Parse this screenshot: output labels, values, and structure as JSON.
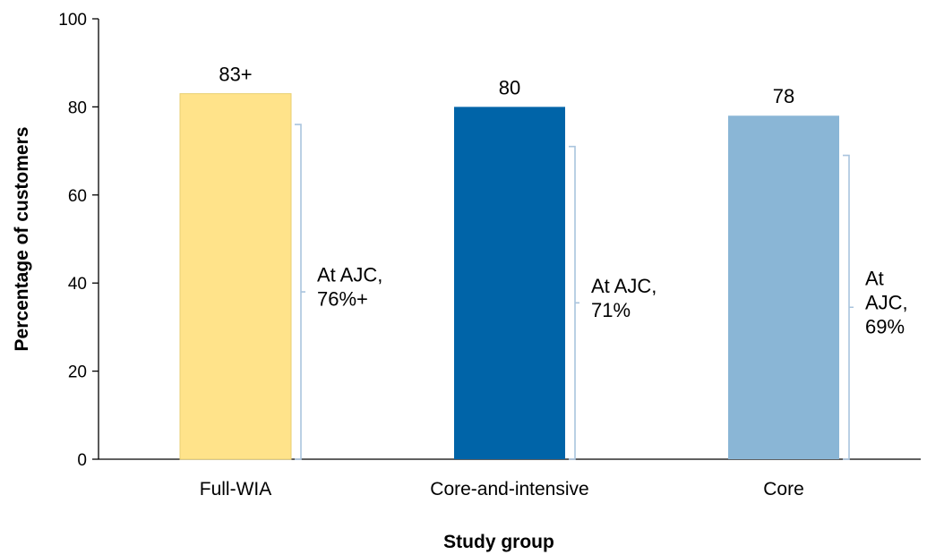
{
  "chart_data": {
    "type": "bar",
    "title": "",
    "xlabel": "Study group",
    "ylabel": "Percentage of customers",
    "ylim": [
      0,
      100
    ],
    "yticks": [
      0,
      20,
      40,
      60,
      80,
      100
    ],
    "grid": false,
    "categories": [
      "Full-WIA",
      "Core-and-intensive",
      "Core"
    ],
    "values": [
      83,
      80,
      78
    ],
    "data_labels": [
      "83+",
      "80",
      "78"
    ],
    "colors": [
      "#FFE38A",
      "#0064A8",
      "#8AB6D6"
    ],
    "bracket_color": "#A9C4DE",
    "subsets": [
      {
        "value": 76,
        "label_lines": [
          "At AJC,",
          "76%+"
        ]
      },
      {
        "value": 71,
        "label_lines": [
          "At AJC,",
          "71%"
        ]
      },
      {
        "value": 69,
        "label_lines": [
          "At",
          "AJC,",
          "69%"
        ]
      }
    ]
  }
}
